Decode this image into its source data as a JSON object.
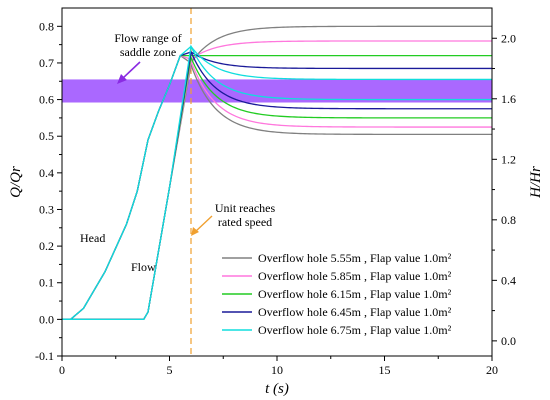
{
  "chart_data": {
    "type": "line",
    "xlabel": "t (s)",
    "ylabel_left": "Q/Qr",
    "ylabel_right": "H/Hr",
    "x_axis": {
      "min": 0,
      "max": 20,
      "ticks": [
        "0",
        "5",
        "10",
        "15",
        "20"
      ]
    },
    "y_left_axis": {
      "min": -0.1,
      "max": 0.85,
      "ticks": [
        "-0.1",
        "0.0",
        "0.1",
        "0.2",
        "0.3",
        "0.4",
        "0.5",
        "0.6",
        "0.7",
        "0.8"
      ]
    },
    "y_right_axis": {
      "min": -0.1,
      "max": 2.2,
      "ticks": [
        "0.0",
        "0.4",
        "0.8",
        "1.2",
        "1.6",
        "2.0"
      ],
      "tick_values": [
        0.0,
        0.4,
        0.8,
        1.2,
        1.6,
        2.0
      ]
    },
    "saddle_band": {
      "y_from": 0.592,
      "y_to": 0.655,
      "color": "#9b4dff",
      "label": "Flow range of saddle zone"
    },
    "rated_speed_time": 6.0,
    "annotations": {
      "saddle": [
        "Flow range of",
        "saddle zone"
      ],
      "rated": [
        "Unit reaches",
        "rated speed"
      ],
      "head": "Head",
      "flow": "Flow"
    },
    "head_curve_common": {
      "x": [
        0,
        0.4,
        1,
        2,
        3,
        3.5,
        4,
        4.5,
        5,
        5.5,
        6
      ],
      "y": [
        0.0,
        0.0,
        0.03,
        0.13,
        0.26,
        0.35,
        0.49,
        0.57,
        0.64,
        0.72,
        0.74
      ]
    },
    "flow_start": {
      "x": [
        0,
        3.8,
        4.0
      ],
      "y": [
        0.0,
        0.0,
        0.02
      ]
    },
    "series": [
      {
        "name": "Overflow hole 5.55m , Flap value 1.0m²",
        "color": "#808080",
        "flow_peak": 0.695,
        "flow_final": 0.505,
        "head_peak": 0.7,
        "head_final": 0.8
      },
      {
        "name": "Overflow hole 5.85m , Flap value 1.0m²",
        "color": "#ff77dd",
        "flow_peak": 0.705,
        "flow_final": 0.525,
        "head_peak": 0.71,
        "head_final": 0.76
      },
      {
        "name": "Overflow hole 6.15m , Flap value 1.0m²",
        "color": "#22cc22",
        "flow_peak": 0.715,
        "flow_final": 0.55,
        "head_peak": 0.72,
        "head_final": 0.72
      },
      {
        "name": "Overflow hole 6.45m , Flap value 1.0m²",
        "color": "#1a1a99",
        "flow_peak": 0.73,
        "flow_final": 0.575,
        "head_peak": 0.73,
        "head_final": 0.685
      },
      {
        "name": "Overflow hole 6.75m , Flap value 1.0m²",
        "color": "#11dddd",
        "flow_peak": 0.745,
        "flow_final": 0.6,
        "head_peak": 0.745,
        "head_final": 0.655
      }
    ]
  }
}
